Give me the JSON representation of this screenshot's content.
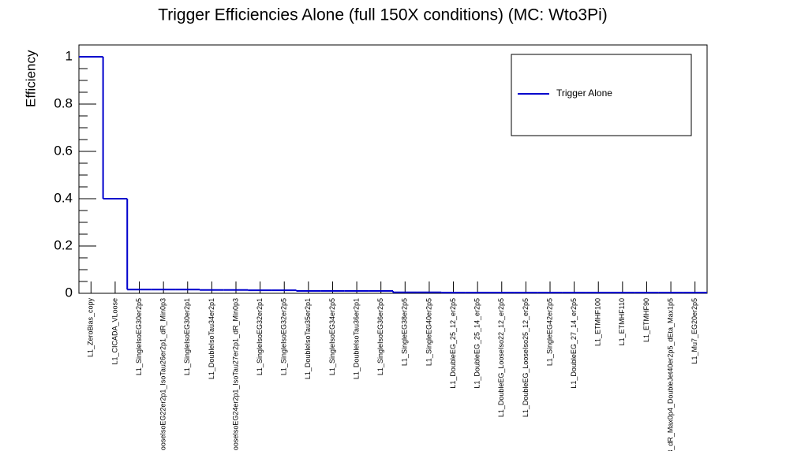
{
  "chart_data": {
    "type": "step",
    "title": "Trigger Efficiencies Alone (full 150X conditions) (MC: Wto3Pi)",
    "y_label": "Efficiency",
    "categories": [
      "L1_ZeroBias_copy",
      "L1_CICADA_VLoose",
      "L1_SingleIsoEG30er2p5",
      "ooseIsoEG22er2p1_IsoTau26er2p1_dR_Min0p3",
      "L1_SingleIsoEG30er2p1",
      "L1_DoubleIsoTau34er2p1",
      "ooseIsoEG24er2p1_IsoTau27er2p1_dR_Min0p3",
      "L1_SingleIsoEG32er2p1",
      "L1_SingleIsoEG32er2p5",
      "L1_DoubleIsoTau35er2p1",
      "L1_SingleIsoEG34er2p5",
      "L1_DoubleIsoTau36er2p1",
      "L1_SingleIsoEG36er2p5",
      "L1_SingleEG38er2p5",
      "L1_SingleEG40er2p5",
      "L1_DoubleEG_25_12_er2p5",
      "L1_DoubleEG_25_14_er2p5",
      "L1_DoubleEG_LooseIso22_12_er2p5",
      "L1_DoubleEG_LooseIso25_12_er2p5",
      "L1_SingleEG42er2p5",
      "L1_DoubleEG_27_14_er2p5",
      "L1_ETMHF100",
      "L1_ETMHF110",
      "L1_ETMHF90",
      "3_dR_Max0p4_DoubleJet40er2p5_dEta_Max1p5",
      "L1_Mu7_EG20er2p5"
    ],
    "series": [
      {
        "name": "Trigger Alone",
        "color": "#0000cc",
        "values": [
          1,
          0.4,
          0.016,
          0.016,
          0.016,
          0.014,
          0.014,
          0.013,
          0.013,
          0.01,
          0.01,
          0.01,
          0.01,
          0.004,
          0.004,
          0.003,
          0.003,
          0.003,
          0.003,
          0.003,
          0.003,
          0.003,
          0.003,
          0.003,
          0.003,
          0.003
        ]
      }
    ],
    "ylim": [
      0,
      1.05
    ],
    "yticks": [
      0,
      0.2,
      0.4,
      0.6,
      0.8,
      1
    ],
    "legend": "top-right"
  }
}
